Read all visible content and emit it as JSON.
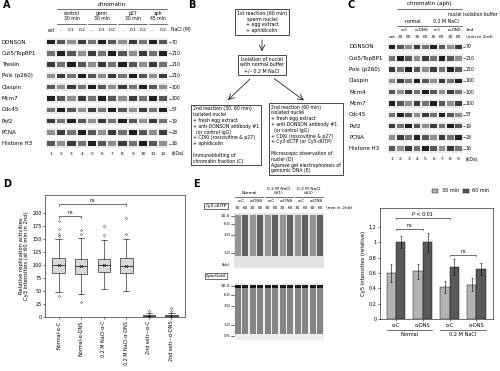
{
  "panels": {
    "A": {
      "letter": "A",
      "header": "chromatin",
      "extract_label": "ext",
      "groups": [
        {
          "label": "control\n30 min",
          "nacl": [
            "–",
            "0.1",
            "0.2"
          ]
        },
        {
          "label": "germ\n30 min",
          "nacl": [
            "–",
            "0.1",
            "0.2"
          ]
        },
        {
          "label": "p27\n30 min",
          "nacl": [
            "–",
            "0.1",
            "0.2"
          ]
        },
        {
          "label": "aph\n45 min",
          "nacl": [
            "–",
            "0.2"
          ]
        }
      ],
      "nacl_label": "NaCl (M)",
      "rows": [
        {
          "name": "DONSON",
          "kda": 70
        },
        {
          "name": "Cut5/TopBP1",
          "kda": 210
        },
        {
          "name": "Treslin",
          "kda": 210
        },
        {
          "name": "Polε (p260)",
          "kda": 210
        },
        {
          "name": "Claspin",
          "kda": 100
        },
        {
          "name": "Mcm7",
          "kda": 100
        },
        {
          "name": "Cdc45",
          "kda": 57
        },
        {
          "name": "Psf2",
          "kda": 19
        },
        {
          "name": "PCNA",
          "kda": 28
        },
        {
          "name": "Histone H3",
          "kda": 16
        }
      ],
      "kda_unit": "(kDa)",
      "lane_numbers": [
        1,
        2,
        3,
        4,
        5,
        6,
        7,
        8,
        9,
        10,
        11,
        12
      ]
    },
    "B": {
      "letter": "B",
      "top": "1st reaction (60 min)\nsperm nuclei\n+ egg extract\n+ aphidicolin",
      "middle": "Isolation of nuclei\nwith normal buffer\n+/– 0.2 M NaCl",
      "left": "2nd reaction (30, 60 min)\nisolated nuclei\n+ fresh egg extract\n+ anti-DONSON antibody #1\n  (or control IgG)\n+ CDKi (roscovitine & p27)\n+ aphidicolin\n\nImmunoblotting of\nchromatin fraction (C)",
      "right": "2nd reaction (60 min)\nisolated nuclei\n+ fresh egg extract\n+ anti-DONSON antibody #1\n  (or control IgG)\n+ CDKi (roscovitine & p27)\n+ Cy3-dCTP (or Cy5-dUTP)\n\nMicroscopic observation of\nnuclei (D)\nAgarose gel electrophoresis of\ngenomic DNA (E)"
    },
    "C": {
      "letter": "C",
      "header": "chromatin (aph)",
      "extract_label": "ext",
      "buffer_label": "nuclei isolation buffer",
      "ab_row_label": "2nd",
      "min_label": "(min in 2nd)",
      "groups": [
        {
          "label": "normal",
          "antibodies": [
            {
              "label": "α-C",
              "mins": [
                30,
                60
              ]
            },
            {
              "label": "α-DNS",
              "mins": [
                30,
                60
              ]
            }
          ]
        },
        {
          "label": "0.2 M NaCl",
          "antibodies": [
            {
              "label": "α-C",
              "mins": [
                30,
                60
              ]
            },
            {
              "label": "α-DNS",
              "mins": [
                30,
                60
              ]
            }
          ]
        }
      ],
      "rows": [
        {
          "name": "DONSON",
          "kda": 70
        },
        {
          "name": "Cut5/TopBP1",
          "kda": 210
        },
        {
          "name": "Polε (p260)",
          "kda": 210
        },
        {
          "name": "Claspin",
          "kda": 100
        },
        {
          "name": "Mcm4",
          "kda": 100
        },
        {
          "name": "Mcm7",
          "kda": 100
        },
        {
          "name": "Cdc45",
          "kda": 57
        },
        {
          "name": "Psf2",
          "kda": 19
        },
        {
          "name": "PCNA",
          "kda": 28
        },
        {
          "name": "Histone H3",
          "kda": 16
        }
      ],
      "kda_unit": "(kDa)",
      "lane_numbers": [
        1,
        2,
        3,
        4,
        5,
        6,
        7,
        8,
        9
      ]
    },
    "E_gel": {
      "letter": "E",
      "min_label": "(min in 2nd)",
      "groups": [
        {
          "label": "Normal",
          "antibodies": [
            {
              "label": "α-C",
              "mins": [
                30,
                60
              ]
            },
            {
              "label": "α-DNS",
              "mins": [
                30,
                60
              ]
            }
          ]
        },
        {
          "label": "0.2 M NaCl\n(#1)",
          "antibodies": [
            {
              "label": "α-C",
              "mins": [
                30,
                60
              ]
            },
            {
              "label": "α-DNS",
              "mins": [
                30,
                60
              ]
            }
          ]
        },
        {
          "label": "0.2 M NaCl\n(#2)",
          "antibodies": [
            {
              "label": "α-C",
              "mins": [
                30,
                60
              ]
            },
            {
              "label": "α-DNS",
              "mins": [
                30,
                60
              ]
            }
          ]
        }
      ],
      "gels": [
        {
          "label": "Cy5-dUTP",
          "markers": [
            10.0,
            6.0,
            3.0,
            1.0
          ],
          "unit": "(kb)"
        },
        {
          "label": "SybrGold",
          "markers": [
            10.0,
            6.0,
            3.0,
            1.0,
            0.5
          ]
        }
      ]
    }
  },
  "chart_data": [
    {
      "type": "box",
      "letter": "D",
      "categories": [
        "Normal-α-C",
        "Normal-α-DNS",
        "0.2 M NaCl-α-C",
        "0.2 M NaCl-α-DNS",
        "2nd extr–-α-C",
        "2nd extr–-α-DNS"
      ],
      "y_label": "Relative replication activities\nCy3 intensities (at 60 min in 2nd)",
      "ylim": [
        0,
        235
      ],
      "yticks": [
        0,
        25,
        50,
        75,
        100,
        125,
        150,
        175,
        200
      ],
      "color": "#d9d9d9",
      "boxes": [
        {
          "median": 100,
          "q1": 85,
          "q3": 113,
          "whisker_low": 48,
          "whisker_high": 150,
          "mean": 100,
          "outliers": [
            155,
            160,
            170,
            185,
            40
          ]
        },
        {
          "median": 98,
          "q1": 83,
          "q3": 112,
          "whisker_low": 45,
          "whisker_high": 152,
          "mean": 99,
          "outliers": [
            160,
            168,
            30
          ]
        },
        {
          "median": 100,
          "q1": 86,
          "q3": 112,
          "whisker_low": 55,
          "whisker_high": 148,
          "mean": 100,
          "outliers": [
            158,
            175
          ]
        },
        {
          "median": 98,
          "q1": 84,
          "q3": 113,
          "whisker_low": 50,
          "whisker_high": 150,
          "mean": 99,
          "outliers": [
            160,
            190
          ]
        },
        {
          "median": 3,
          "q1": 1,
          "q3": 5,
          "whisker_low": 0,
          "whisker_high": 9,
          "mean": 3,
          "outliers": [
            12
          ]
        },
        {
          "median": 3,
          "q1": 1,
          "q3": 5,
          "whisker_low": 0,
          "whisker_high": 9,
          "mean": 3,
          "outliers": [
            12,
            18
          ]
        }
      ],
      "comparisons": [
        {
          "pair": [
            0,
            1
          ],
          "label": "ns"
        },
        {
          "pair": [
            0,
            3
          ],
          "label": "ns"
        }
      ]
    },
    {
      "type": "bar",
      "categories": [
        "α-C",
        "α-DNS",
        "α-C",
        "α-DNS"
      ],
      "groups": [
        {
          "label": "Normal",
          "span": [
            0,
            1
          ]
        },
        {
          "label": "0.2 M NaCl",
          "span": [
            2,
            3
          ]
        }
      ],
      "series": [
        {
          "name": "30 min",
          "color": "#b3b3b3",
          "values": [
            0.6,
            0.62,
            0.42,
            0.45
          ],
          "errors": [
            0.12,
            0.1,
            0.08,
            0.08
          ]
        },
        {
          "name": "60 min",
          "color": "#595959",
          "values": [
            1.0,
            1.0,
            0.68,
            0.65
          ],
          "errors": [
            0.08,
            0.12,
            0.1,
            0.08
          ]
        }
      ],
      "y_label": "Cy5 intensities (relative)",
      "ylim": [
        0,
        1.45
      ],
      "yticks": [
        0,
        0.2,
        0.4,
        0.6,
        0.8,
        1,
        1.2
      ],
      "legend": "upper right",
      "comparisons": [
        {
          "pair": [
            0,
            2
          ],
          "label": "P < 0.01"
        },
        {
          "pair": [
            0,
            1
          ],
          "label": "ns"
        },
        {
          "pair": [
            2,
            3
          ],
          "label": "ns"
        }
      ]
    }
  ]
}
